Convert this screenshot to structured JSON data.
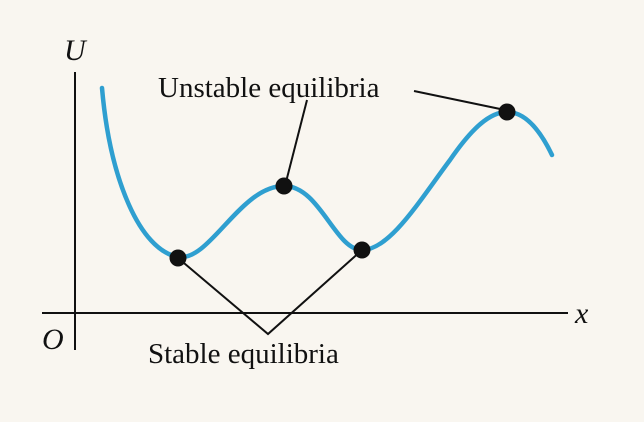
{
  "axes": {
    "y_label": "U",
    "x_label": "x",
    "origin_label": "O"
  },
  "annotations": {
    "unstable": "Unstable equilibria",
    "stable": "Stable equilibria"
  },
  "colors": {
    "background": "#f9f6f0",
    "curve": "#2f9fd0",
    "axes": "#111111",
    "points": "#111111"
  }
}
